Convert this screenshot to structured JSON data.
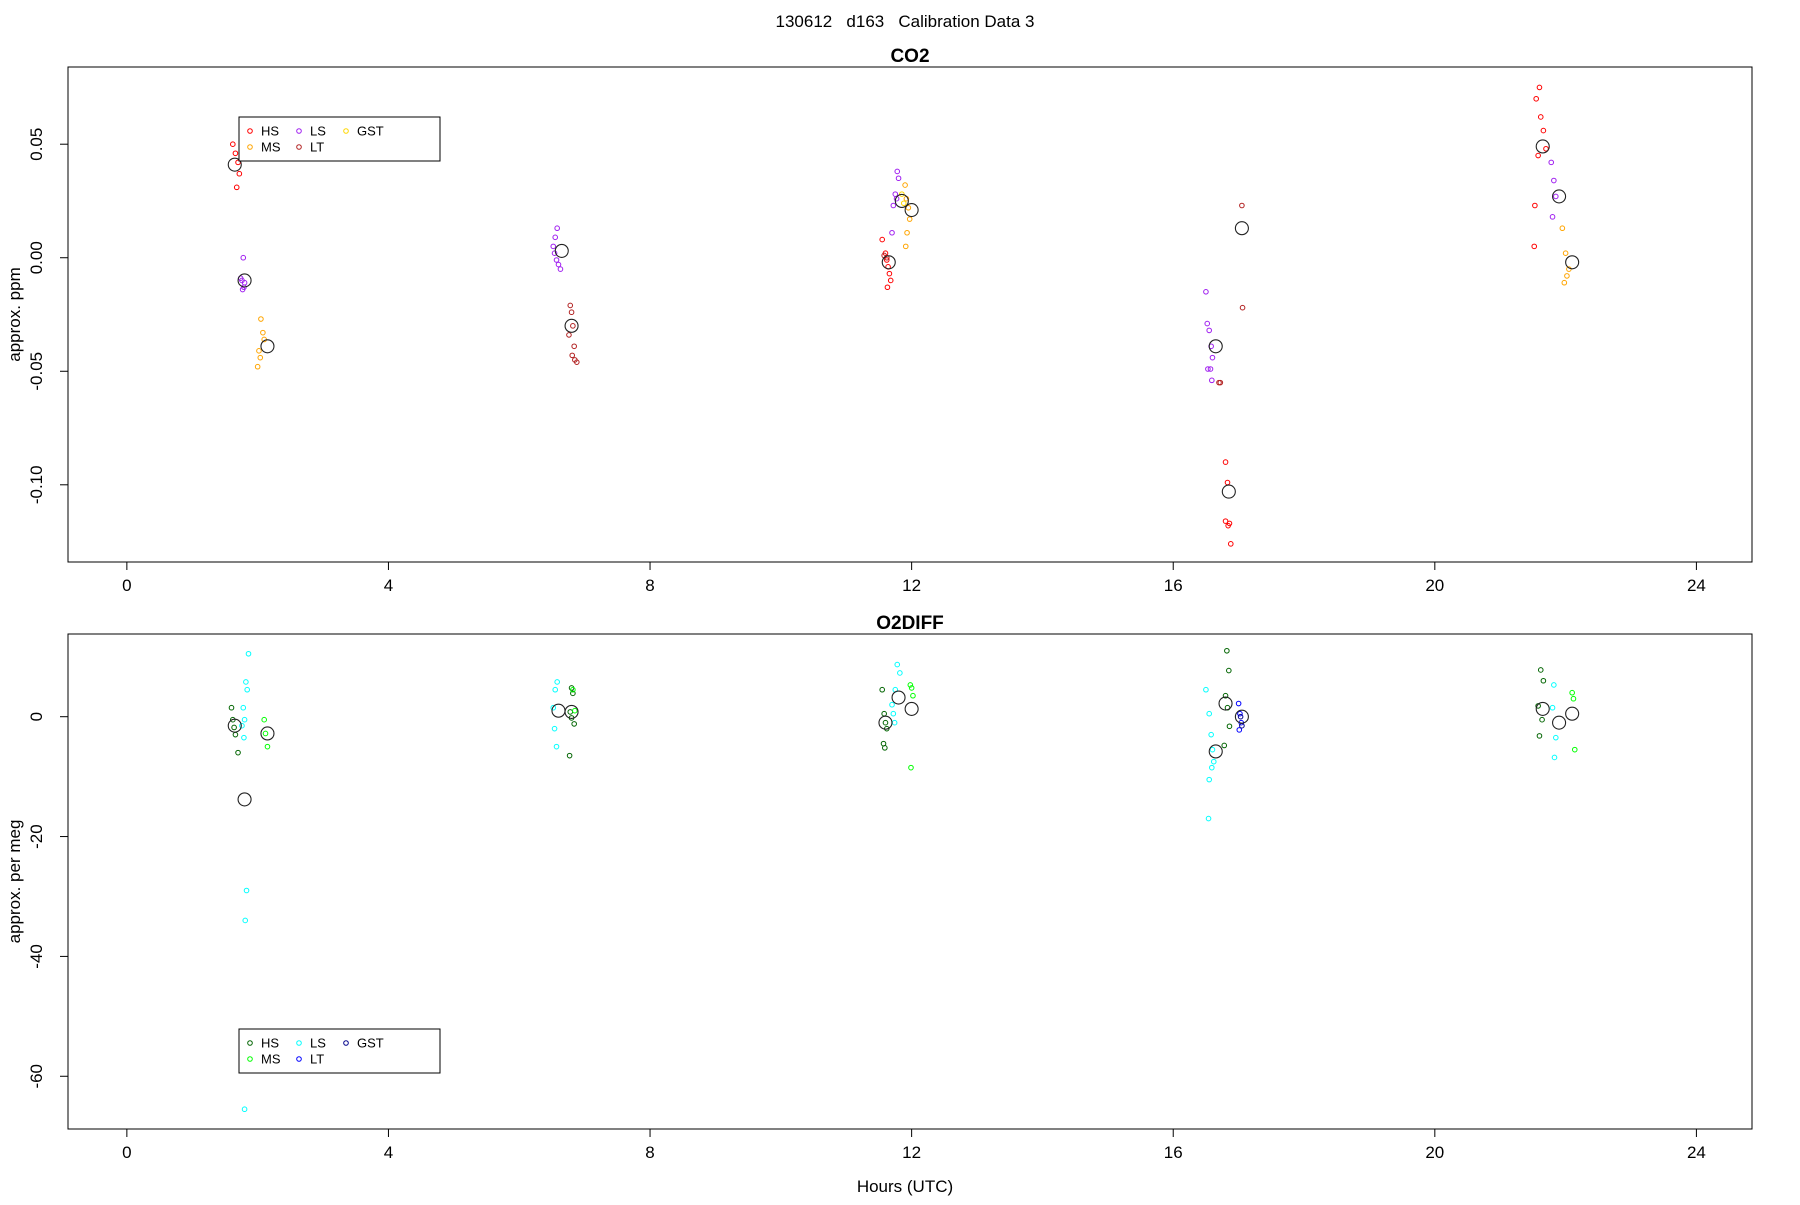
{
  "page_title": "130612   d163   Calibration Data 3",
  "xlabel": "Hours (UTC)",
  "chart_data": [
    {
      "type": "scatter",
      "title": "CO2",
      "ylabel": "approx. ppm",
      "xlim": [
        -0.9,
        24.85
      ],
      "ylim": [
        -0.134,
        0.084
      ],
      "xticks": [
        0,
        4,
        8,
        12,
        16,
        20,
        24
      ],
      "yticks": [
        -0.1,
        -0.05,
        0.0,
        0.05
      ],
      "ytick_labels": [
        "-0.10",
        "-0.05",
        "0.00",
        "0.05"
      ],
      "legend_entries": [
        {
          "label": "HS",
          "color": "#ff0000"
        },
        {
          "label": "MS",
          "color": "#ffa500"
        },
        {
          "label": "LS",
          "color": "#a020f0"
        },
        {
          "label": "LT",
          "color": "#b22222"
        },
        {
          "label": "GST",
          "color": "#ffd700"
        }
      ],
      "series": [
        {
          "name": "HS",
          "color": "#ff0000",
          "points": [
            [
              1.62,
              0.05
            ],
            [
              1.66,
              0.046
            ],
            [
              1.7,
              0.042
            ],
            [
              1.72,
              0.037
            ],
            [
              1.68,
              0.031
            ],
            [
              11.55,
              0.008
            ],
            [
              11.6,
              0.002
            ],
            [
              11.62,
              -0.001
            ],
            [
              11.64,
              -0.004
            ],
            [
              11.66,
              -0.007
            ],
            [
              11.68,
              -0.01
            ],
            [
              11.63,
              -0.013
            ],
            [
              16.8,
              -0.09
            ],
            [
              16.83,
              -0.099
            ],
            [
              16.8,
              -0.116
            ],
            [
              16.84,
              -0.118
            ],
            [
              16.86,
              -0.117
            ],
            [
              16.88,
              -0.126
            ],
            [
              21.55,
              0.07
            ],
            [
              21.6,
              0.075
            ],
            [
              21.62,
              0.062
            ],
            [
              21.66,
              0.056
            ],
            [
              21.7,
              0.048
            ],
            [
              21.58,
              0.045
            ],
            [
              21.53,
              0.023
            ],
            [
              21.52,
              0.005
            ]
          ]
        },
        {
          "name": "MS",
          "color": "#ffa500",
          "points": [
            [
              2.05,
              -0.027
            ],
            [
              2.08,
              -0.033
            ],
            [
              2.1,
              -0.036
            ],
            [
              2.02,
              -0.041
            ],
            [
              2.04,
              -0.044
            ],
            [
              2.0,
              -0.048
            ],
            [
              11.9,
              0.032
            ],
            [
              11.92,
              0.026
            ],
            [
              11.95,
              0.022
            ],
            [
              11.97,
              0.017
            ],
            [
              11.93,
              0.011
            ],
            [
              11.91,
              0.005
            ],
            [
              21.95,
              0.013
            ],
            [
              22.0,
              0.002
            ],
            [
              22.05,
              -0.005
            ],
            [
              22.02,
              -0.008
            ],
            [
              21.98,
              -0.011
            ]
          ]
        },
        {
          "name": "LS",
          "color": "#a020f0",
          "points": [
            [
              1.78,
              0.0
            ],
            [
              1.74,
              -0.009
            ],
            [
              1.76,
              -0.01
            ],
            [
              1.8,
              -0.011
            ],
            [
              1.79,
              -0.013
            ],
            [
              1.77,
              -0.014
            ],
            [
              6.58,
              0.013
            ],
            [
              6.55,
              0.009
            ],
            [
              6.52,
              0.005
            ],
            [
              6.54,
              0.002
            ],
            [
              6.57,
              -0.001
            ],
            [
              6.6,
              -0.003
            ],
            [
              6.63,
              -0.005
            ],
            [
              11.78,
              0.038
            ],
            [
              11.8,
              0.035
            ],
            [
              11.75,
              0.028
            ],
            [
              11.77,
              0.026
            ],
            [
              11.72,
              0.023
            ],
            [
              11.7,
              0.011
            ],
            [
              16.5,
              -0.015
            ],
            [
              16.52,
              -0.029
            ],
            [
              16.55,
              -0.032
            ],
            [
              16.58,
              -0.039
            ],
            [
              16.6,
              -0.044
            ],
            [
              16.53,
              -0.049
            ],
            [
              16.57,
              -0.049
            ],
            [
              16.59,
              -0.054
            ],
            [
              21.78,
              0.042
            ],
            [
              21.82,
              0.034
            ],
            [
              21.85,
              0.027
            ],
            [
              21.8,
              0.018
            ]
          ]
        },
        {
          "name": "LT",
          "color": "#b22222",
          "points": [
            [
              6.78,
              -0.021
            ],
            [
              6.8,
              -0.024
            ],
            [
              6.82,
              -0.03
            ],
            [
              6.76,
              -0.034
            ],
            [
              6.84,
              -0.039
            ],
            [
              6.81,
              -0.043
            ],
            [
              6.85,
              -0.045
            ],
            [
              6.88,
              -0.046
            ],
            [
              11.58,
              0.001
            ],
            [
              11.62,
              0.0
            ],
            [
              16.7,
              -0.055
            ],
            [
              16.72,
              -0.055
            ],
            [
              17.05,
              0.023
            ],
            [
              17.06,
              -0.022
            ]
          ]
        },
        {
          "name": "GST",
          "color": "#ffd700",
          "points": [
            [
              11.85,
              0.028
            ],
            [
              11.88,
              0.024
            ]
          ]
        }
      ],
      "means": [
        [
          1.65,
          0.041
        ],
        [
          1.8,
          -0.01
        ],
        [
          2.15,
          -0.039
        ],
        [
          6.65,
          0.003
        ],
        [
          6.8,
          -0.03
        ],
        [
          11.65,
          -0.002
        ],
        [
          11.85,
          0.025
        ],
        [
          12.0,
          0.021
        ],
        [
          16.65,
          -0.039
        ],
        [
          16.85,
          -0.103
        ],
        [
          17.05,
          0.013
        ],
        [
          21.65,
          0.049
        ],
        [
          21.9,
          0.027
        ],
        [
          22.1,
          -0.002
        ]
      ]
    },
    {
      "type": "scatter",
      "title": "O2DIFF",
      "ylabel": "approx. per meg",
      "xlim": [
        -0.9,
        24.85
      ],
      "ylim": [
        -68.8,
        13.8
      ],
      "xticks": [
        0,
        4,
        8,
        12,
        16,
        20,
        24
      ],
      "yticks": [
        -60,
        -40,
        -20,
        0
      ],
      "ytick_labels": [
        "-60",
        "-40",
        "-20",
        "0"
      ],
      "legend_entries": [
        {
          "label": "HS",
          "color": "#006400"
        },
        {
          "label": "MS",
          "color": "#00ff00"
        },
        {
          "label": "LS",
          "color": "#00ffff"
        },
        {
          "label": "LT",
          "color": "#0000ff"
        },
        {
          "label": "GST",
          "color": "#00008b"
        }
      ],
      "series": [
        {
          "name": "HS",
          "color": "#006400",
          "points": [
            [
              1.6,
              1.5
            ],
            [
              1.62,
              -0.5
            ],
            [
              1.64,
              -1.8
            ],
            [
              1.66,
              -3.0
            ],
            [
              1.7,
              -6.0
            ],
            [
              6.8,
              4.8
            ],
            [
              6.82,
              3.9
            ],
            [
              6.78,
              0.8
            ],
            [
              6.8,
              -0.2
            ],
            [
              6.84,
              -1.2
            ],
            [
              6.77,
              -6.5
            ],
            [
              11.55,
              4.5
            ],
            [
              11.58,
              0.5
            ],
            [
              11.6,
              -1.0
            ],
            [
              11.62,
              -2.0
            ],
            [
              11.57,
              -4.5
            ],
            [
              11.59,
              -5.2
            ],
            [
              16.82,
              11.0
            ],
            [
              16.85,
              7.7
            ],
            [
              16.8,
              3.5
            ],
            [
              16.83,
              1.5
            ],
            [
              16.86,
              -1.6
            ],
            [
              16.78,
              -4.8
            ],
            [
              21.62,
              7.8
            ],
            [
              21.66,
              6.0
            ],
            [
              21.58,
              1.8
            ],
            [
              21.64,
              -0.5
            ],
            [
              21.6,
              -3.2
            ]
          ]
        },
        {
          "name": "MS",
          "color": "#00ff00",
          "points": [
            [
              2.1,
              -0.5
            ],
            [
              2.12,
              -2.8
            ],
            [
              2.15,
              -5.0
            ],
            [
              6.82,
              4.5
            ],
            [
              6.85,
              1.0
            ],
            [
              11.98,
              5.3
            ],
            [
              12.0,
              4.8
            ],
            [
              12.02,
              3.5
            ],
            [
              11.99,
              -8.5
            ],
            [
              22.1,
              4.0
            ],
            [
              22.12,
              3.0
            ],
            [
              22.14,
              -5.5
            ]
          ]
        },
        {
          "name": "LS",
          "color": "#00ffff",
          "points": [
            [
              1.86,
              10.5
            ],
            [
              1.82,
              5.8
            ],
            [
              1.84,
              4.5
            ],
            [
              1.78,
              1.5
            ],
            [
              1.8,
              -0.5
            ],
            [
              1.76,
              -1.5
            ],
            [
              1.79,
              -3.5
            ],
            [
              1.83,
              -29.0
            ],
            [
              1.81,
              -34.0
            ],
            [
              1.8,
              -65.5
            ],
            [
              6.58,
              5.8
            ],
            [
              6.55,
              4.5
            ],
            [
              6.52,
              1.5
            ],
            [
              6.54,
              -2.0
            ],
            [
              6.57,
              -5.0
            ],
            [
              11.78,
              8.7
            ],
            [
              11.82,
              7.3
            ],
            [
              11.75,
              4.5
            ],
            [
              11.7,
              2.0
            ],
            [
              11.72,
              0.5
            ],
            [
              11.74,
              -1.0
            ],
            [
              16.5,
              4.5
            ],
            [
              16.55,
              0.5
            ],
            [
              16.58,
              -3.0
            ],
            [
              16.6,
              -5.5
            ],
            [
              16.62,
              -7.5
            ],
            [
              16.59,
              -8.5
            ],
            [
              16.55,
              -10.5
            ],
            [
              16.54,
              -17.0
            ],
            [
              21.82,
              5.3
            ],
            [
              21.8,
              1.5
            ],
            [
              21.85,
              -3.5
            ],
            [
              21.83,
              -6.8
            ]
          ]
        },
        {
          "name": "LT",
          "color": "#0000ff",
          "points": [
            [
              17.0,
              2.2
            ],
            [
              17.02,
              0.5
            ],
            [
              17.04,
              -1.0
            ],
            [
              17.01,
              -2.2
            ]
          ]
        },
        {
          "name": "GST",
          "color": "#00008b",
          "points": [
            [
              17.03,
              0.0
            ],
            [
              17.05,
              -1.5
            ]
          ]
        }
      ],
      "means": [
        [
          1.65,
          -1.5
        ],
        [
          1.8,
          -13.8
        ],
        [
          2.15,
          -2.8
        ],
        [
          6.6,
          1.0
        ],
        [
          6.8,
          0.8
        ],
        [
          11.6,
          -1.0
        ],
        [
          11.8,
          3.2
        ],
        [
          12.0,
          1.3
        ],
        [
          16.65,
          -5.8
        ],
        [
          16.8,
          2.2
        ],
        [
          17.05,
          0.0
        ],
        [
          21.65,
          1.3
        ],
        [
          21.9,
          -1.0
        ],
        [
          22.1,
          0.5
        ]
      ]
    }
  ]
}
